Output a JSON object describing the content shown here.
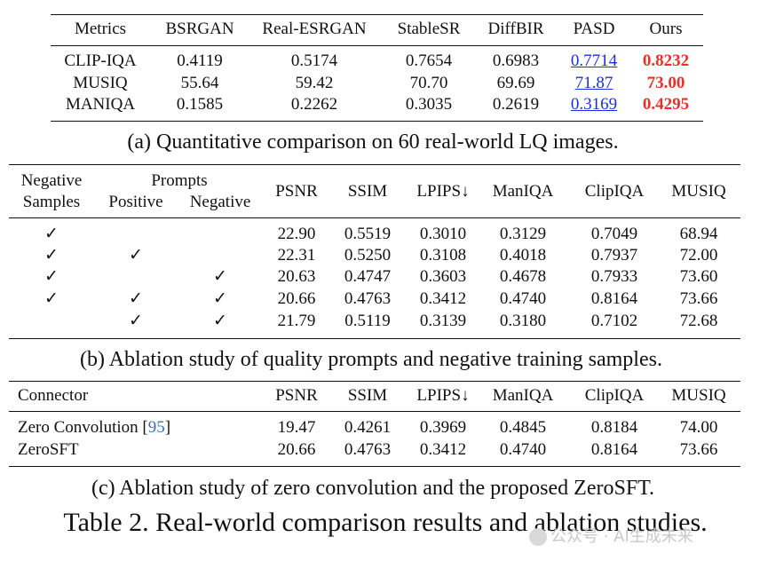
{
  "table_a": {
    "headers": [
      "Metrics",
      "BSRGAN",
      "Real-ESRGAN",
      "StableSR",
      "DiffBIR",
      "PASD",
      "Ours"
    ],
    "rows": [
      [
        "CLIP-IQA",
        "0.4119",
        "0.5174",
        "0.7654",
        "0.6983",
        "0.7714",
        "0.8232"
      ],
      [
        "MUSIQ",
        "55.64",
        "59.42",
        "70.70",
        "69.69",
        "71.87",
        "73.00"
      ],
      [
        "MANIQA",
        "0.1585",
        "0.2262",
        "0.3035",
        "0.2619",
        "0.3169",
        "0.4295"
      ]
    ],
    "caption": "(a) Quantitative comparison on 60 real-world LQ images."
  },
  "table_b": {
    "header_neg_line1": "Negative",
    "header_neg_line2": "Samples",
    "header_prompts": "Prompts",
    "header_positive": "Positive",
    "header_negative": "Negative",
    "metric_headers": [
      "PSNR",
      "SSIM",
      "LPIPS↓",
      "ManIQA",
      "ClipIQA",
      "MUSIQ"
    ],
    "check": "✓",
    "rows": [
      {
        "neg": true,
        "pos": false,
        "negp": false,
        "vals": [
          "22.90",
          "0.5519",
          "0.3010",
          "0.3129",
          "0.7049",
          "68.94"
        ]
      },
      {
        "neg": true,
        "pos": true,
        "negp": false,
        "vals": [
          "22.31",
          "0.5250",
          "0.3108",
          "0.4018",
          "0.7937",
          "72.00"
        ]
      },
      {
        "neg": true,
        "pos": false,
        "negp": true,
        "vals": [
          "20.63",
          "0.4747",
          "0.3603",
          "0.4678",
          "0.7933",
          "73.60"
        ]
      },
      {
        "neg": true,
        "pos": true,
        "negp": true,
        "vals": [
          "20.66",
          "0.4763",
          "0.3412",
          "0.4740",
          "0.8164",
          "73.66"
        ]
      },
      {
        "neg": false,
        "pos": true,
        "negp": true,
        "vals": [
          "21.79",
          "0.5119",
          "0.3139",
          "0.3180",
          "0.7102",
          "72.68"
        ]
      }
    ],
    "caption": "(b) Ablation study of quality prompts and negative training samples."
  },
  "table_c": {
    "header_connector": "Connector",
    "metric_headers": [
      "PSNR",
      "SSIM",
      "LPIPS↓",
      "ManIQA",
      "ClipIQA",
      "MUSIQ"
    ],
    "rows": [
      {
        "name": "Zero Convolution",
        "cite_open": "[",
        "cite": "95",
        "cite_close": "]",
        "vals": [
          "19.47",
          "0.4261",
          "0.3969",
          "0.4845",
          "0.8184",
          "74.00"
        ]
      },
      {
        "name": "ZeroSFT",
        "vals": [
          "20.66",
          "0.4763",
          "0.3412",
          "0.4740",
          "0.8164",
          "73.66"
        ]
      }
    ],
    "caption": "(c) Ablation study of zero convolution and the proposed ZeroSFT."
  },
  "table_title": "Table 2. Real-world comparison results and ablation studies.",
  "watermark": "公众号 · AI生成未来",
  "colors": {
    "best": "#e8302a",
    "second": "#1a2ee0",
    "cite": "#3a6fb0"
  }
}
